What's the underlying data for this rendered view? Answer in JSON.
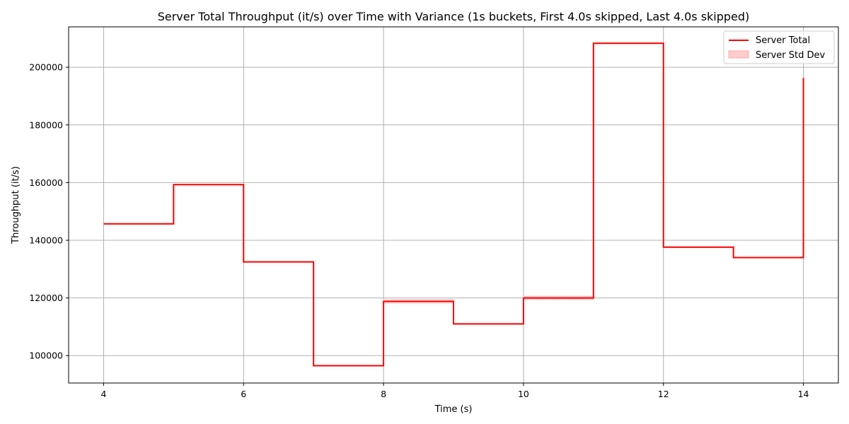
{
  "chart_data": {
    "type": "line",
    "title": "Server Total Throughput (it/s) over Time with Variance (1s buckets, First 4.0s skipped, Last 4.0s skipped)",
    "xlabel": "Time (s)",
    "ylabel": "Throughput (it/s)",
    "xlim": [
      3.5,
      14.5
    ],
    "ylim": [
      90500,
      214000
    ],
    "xticks": [
      4,
      6,
      8,
      10,
      12,
      14
    ],
    "yticks": [
      100000,
      120000,
      140000,
      160000,
      180000,
      200000
    ],
    "grid": true,
    "legend_position": "top-right",
    "step_style": "post",
    "series": [
      {
        "name": "Server Total",
        "color": "#ff0000",
        "x": [
          4,
          5,
          6,
          7,
          8,
          9,
          10,
          11,
          12,
          13,
          14
        ],
        "y": [
          145700,
          159300,
          132500,
          96500,
          118800,
          111000,
          120000,
          208300,
          137600,
          134000,
          196300
        ]
      }
    ],
    "band": {
      "name": "Server Std Dev",
      "color": "#ffcccc",
      "x": [
        4,
        5,
        6,
        7,
        8,
        9,
        10,
        11,
        12,
        13,
        14
      ],
      "lower": [
        145600,
        159200,
        132400,
        96400,
        118200,
        110900,
        119400,
        208200,
        137500,
        133900,
        196200
      ],
      "upper": [
        145800,
        159400,
        132600,
        96600,
        119400,
        111100,
        120600,
        208400,
        137700,
        134100,
        196400
      ]
    }
  }
}
